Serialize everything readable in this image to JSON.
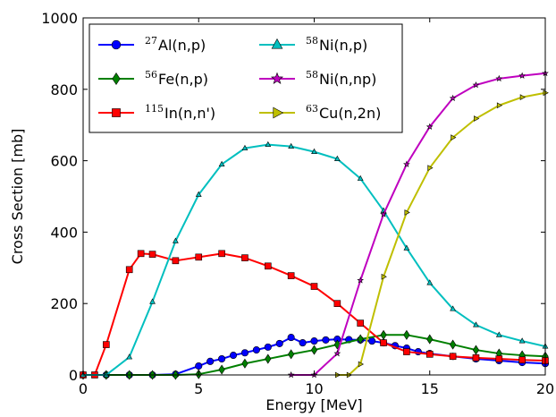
{
  "chart_data": {
    "type": "line",
    "title": "",
    "xlabel": "Energy [MeV]",
    "ylabel": "Cross Section [mb]",
    "xlim": [
      0,
      20
    ],
    "ylim": [
      0,
      1000
    ],
    "xticks": [
      0,
      5,
      10,
      15,
      20
    ],
    "yticks": [
      0,
      200,
      400,
      600,
      800,
      1000
    ],
    "grid": false,
    "legend": "top-left",
    "series": [
      {
        "name": "²⁷Al(n,p)",
        "mass": "27",
        "reaction": "Al(n,p)",
        "color": "#0000ff",
        "marker": "circle",
        "x": [
          0,
          1,
          2,
          3,
          4,
          5,
          5.5,
          6,
          6.5,
          7,
          7.5,
          8,
          8.5,
          9,
          9.5,
          10,
          10.5,
          11,
          11.5,
          12,
          12.5,
          13,
          13.5,
          14,
          14.5,
          15,
          16,
          17,
          18,
          19,
          20
        ],
        "y": [
          0,
          0,
          0,
          0,
          2,
          25,
          38,
          45,
          55,
          62,
          70,
          78,
          88,
          105,
          90,
          95,
          98,
          100,
          99,
          98,
          95,
          90,
          82,
          75,
          65,
          60,
          52,
          45,
          40,
          35,
          32
        ]
      },
      {
        "name": "⁵⁶Fe(n,p)",
        "mass": "56",
        "reaction": "Fe(n,p)",
        "color": "#008000",
        "marker": "diamond",
        "x": [
          0,
          1,
          2,
          3,
          4,
          5,
          6,
          7,
          8,
          9,
          10,
          11,
          12,
          13,
          14,
          15,
          16,
          17,
          18,
          19,
          20
        ],
        "y": [
          0,
          0,
          0,
          0,
          0,
          2,
          15,
          32,
          45,
          58,
          70,
          85,
          100,
          112,
          112,
          100,
          85,
          70,
          60,
          55,
          52
        ]
      },
      {
        "name": "¹¹⁵In(n,n')",
        "mass": "115",
        "reaction": "In(n,n')",
        "color": "#ff0000",
        "marker": "square",
        "x": [
          0,
          0.5,
          1,
          2,
          2.5,
          3,
          4,
          5,
          6,
          7,
          8,
          9,
          10,
          11,
          12,
          13,
          14,
          15,
          16,
          17,
          18,
          19,
          20
        ],
        "y": [
          0,
          0,
          85,
          295,
          340,
          338,
          320,
          330,
          340,
          328,
          305,
          278,
          248,
          200,
          145,
          90,
          65,
          58,
          52,
          48,
          45,
          42,
          40
        ]
      },
      {
        "name": "⁵⁸Ni(n,p)",
        "mass": "58",
        "reaction": "Ni(n,p)",
        "color": "#00bfbf",
        "marker": "triangle-up",
        "x": [
          0,
          1,
          2,
          3,
          4,
          5,
          6,
          7,
          8,
          9,
          10,
          11,
          12,
          13,
          14,
          15,
          16,
          17,
          18,
          19,
          20
        ],
        "y": [
          0,
          0,
          50,
          205,
          375,
          505,
          590,
          635,
          645,
          640,
          625,
          605,
          550,
          460,
          355,
          258,
          185,
          140,
          112,
          95,
          80
        ]
      },
      {
        "name": "⁵⁸Ni(n,np)",
        "mass": "58",
        "reaction": "Ni(n,np)",
        "color": "#bf00bf",
        "marker": "star",
        "x": [
          9,
          10,
          11,
          12,
          13,
          14,
          15,
          16,
          17,
          18,
          19,
          20
        ],
        "y": [
          0,
          0,
          60,
          265,
          450,
          590,
          695,
          775,
          812,
          830,
          838,
          845
        ]
      },
      {
        "name": "⁶³Cu(n,2n)",
        "mass": "63",
        "reaction": "Cu(n,2n)",
        "color": "#bfbf00",
        "marker": "triangle-right",
        "x": [
          11,
          11.5,
          12,
          13,
          14,
          15,
          16,
          17,
          18,
          19,
          20
        ],
        "y": [
          0,
          0,
          30,
          275,
          455,
          580,
          665,
          718,
          755,
          778,
          790
        ]
      }
    ]
  }
}
